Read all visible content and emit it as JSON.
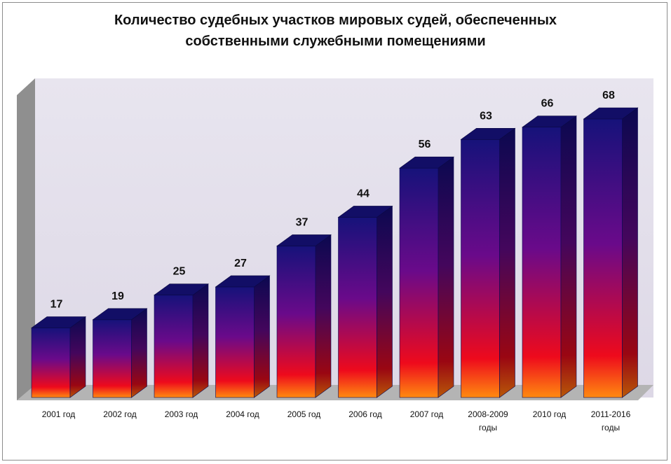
{
  "chart_data": {
    "type": "bar",
    "title_lines": [
      "Количество судебных участков мировых судей, обеспеченных",
      "собственными служебными помещениями"
    ],
    "categories": [
      [
        "2001 год"
      ],
      [
        "2002 год"
      ],
      [
        "2003 год"
      ],
      [
        "2004 год"
      ],
      [
        "2005 год"
      ],
      [
        "2006 год"
      ],
      [
        "2007 год"
      ],
      [
        "2008-2009",
        "годы"
      ],
      [
        "2010 год"
      ],
      [
        "2011-2016",
        "годы"
      ]
    ],
    "values": [
      17,
      19,
      25,
      27,
      37,
      44,
      56,
      63,
      66,
      68
    ],
    "ylim": [
      0,
      76
    ],
    "grid": false,
    "legend": "none",
    "colors": {
      "bar_top": "#16127a",
      "bar_mid": "#7a0a8a",
      "bar_low": "#ee0a1c",
      "bar_base": "#ff8a10",
      "plot_wall": "#e6e2ee",
      "side_wall": "#8c8c8c",
      "floor": "#b2b2b2"
    }
  }
}
